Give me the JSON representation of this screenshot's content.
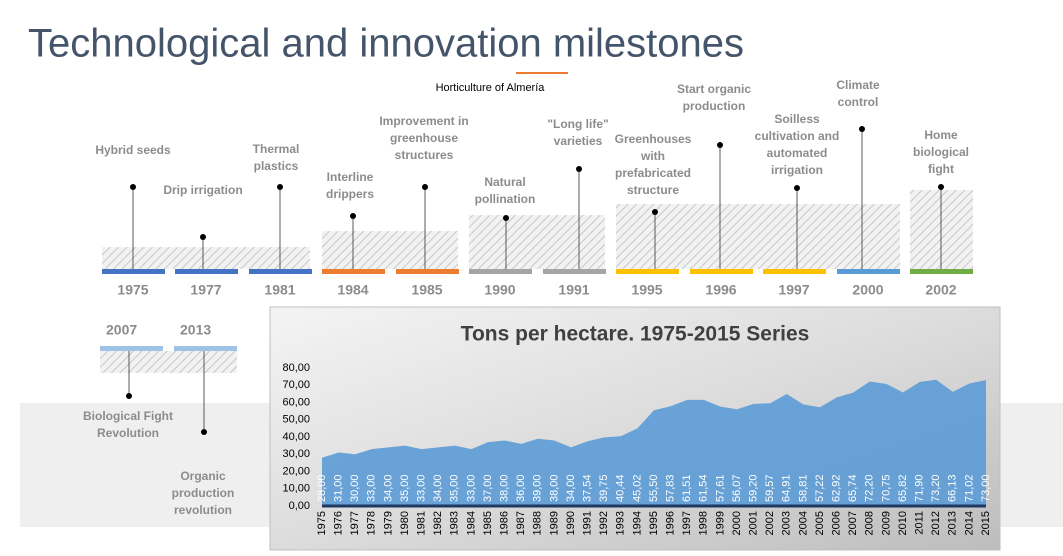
{
  "header": {
    "title": "Technological and innovation milestones",
    "subtitle": "Horticulture of Almería"
  },
  "milestones": [
    {
      "year": "1975",
      "label": [
        "Hybrid seeds"
      ],
      "color": "#4472c4"
    },
    {
      "year": "1977",
      "label": [
        "Drip irrigation"
      ],
      "color": "#4472c4"
    },
    {
      "year": "1981",
      "label": [
        "Thermal",
        "plastics"
      ],
      "color": "#4472c4"
    },
    {
      "year": "1984",
      "label": [
        "Interline",
        "drippers"
      ],
      "color": "#ed7d31"
    },
    {
      "year": "1985",
      "label": [
        "Improvement in",
        "greenhouse",
        "structures"
      ],
      "color": "#ed7d31"
    },
    {
      "year": "1990",
      "label": [
        "Natural",
        "pollination"
      ],
      "color": "#a5a5a5"
    },
    {
      "year": "1991",
      "label": [
        "\"Long life\"",
        "varieties"
      ],
      "color": "#a5a5a5"
    },
    {
      "year": "1995",
      "label": [
        "Greenhouses",
        "with",
        "prefabricated",
        "structure"
      ],
      "color": "#ffc000"
    },
    {
      "year": "1996",
      "label": [
        "Start organic",
        "production"
      ],
      "color": "#ffc000"
    },
    {
      "year": "1997",
      "label": [
        "Soilless",
        "cultivation and",
        "automated",
        "irrigation"
      ],
      "color": "#ffc000"
    },
    {
      "year": "2000",
      "label": [
        "Climate",
        "control"
      ],
      "color": "#5b9bd5"
    },
    {
      "year": "2002",
      "label": [
        "Home",
        "biological",
        "fight"
      ],
      "color": "#70ad47"
    },
    {
      "year": "2007",
      "label": [
        "Biological Fight",
        "Revolution"
      ],
      "color": "#9dc3e6"
    },
    {
      "year": "2013",
      "label": [
        "Organic",
        "production",
        "revolution"
      ],
      "color": "#9dc3e6"
    }
  ],
  "chart_data": {
    "type": "area",
    "title": "Tons per hectare. 1975-2015 Series",
    "color": "#5b9bd5",
    "categories": [
      "1975",
      "1976",
      "1977",
      "1978",
      "1979",
      "1980",
      "1981",
      "1982",
      "1983",
      "1984",
      "1985",
      "1986",
      "1987",
      "1988",
      "1989",
      "1990",
      "1991",
      "1992",
      "1993",
      "1994",
      "1995",
      "1996",
      "1997",
      "1998",
      "1999",
      "2000",
      "2001",
      "2002",
      "2003",
      "2004",
      "2005",
      "2006",
      "2007",
      "2008",
      "2009",
      "2010",
      "2011",
      "2012",
      "2013",
      "2014",
      "2015"
    ],
    "values": [
      28,
      31,
      30,
      33,
      34,
      35,
      33,
      34,
      35,
      33,
      37,
      38,
      36,
      39,
      38,
      34,
      37.54,
      39.75,
      40.44,
      45.02,
      55.5,
      57.83,
      61.51,
      61.54,
      57.61,
      56.07,
      59.2,
      59.57,
      64.91,
      58.81,
      57.22,
      62.92,
      65.74,
      72.2,
      70.75,
      65.82,
      71.9,
      73.2,
      66.13,
      71.02,
      73
    ],
    "value_labels": [
      "28,00",
      "31,00",
      "30,00",
      "33,00",
      "34,00",
      "35,00",
      "33,00",
      "34,00",
      "35,00",
      "33,00",
      "37,00",
      "38,00",
      "36,00",
      "39,00",
      "38,00",
      "34,00",
      "37,54",
      "39,75",
      "40,44",
      "45,02",
      "55,50",
      "57,83",
      "61,51",
      "61,54",
      "57,61",
      "56,07",
      "59,20",
      "59,57",
      "64,91",
      "58,81",
      "57,22",
      "62,92",
      "65,74",
      "72,20",
      "70,75",
      "65,82",
      "71,90",
      "73,20",
      "66,13",
      "71,02",
      "73,00"
    ],
    "ylim": [
      0,
      80
    ],
    "yticks": [
      {
        "value": 0,
        "label": "0,00"
      },
      {
        "value": 10,
        "label": "10,00"
      },
      {
        "value": 20,
        "label": "20,00"
      },
      {
        "value": 30,
        "label": "30,00"
      },
      {
        "value": 40,
        "label": "40,00"
      },
      {
        "value": 50,
        "label": "50,00"
      },
      {
        "value": 60,
        "label": "60,00"
      },
      {
        "value": 70,
        "label": "70,00"
      },
      {
        "value": 80,
        "label": "80,00"
      }
    ]
  }
}
